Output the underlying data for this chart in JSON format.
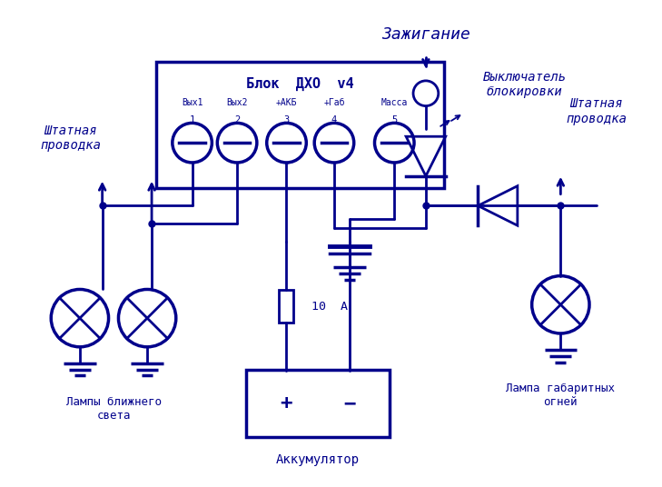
{
  "color": "#00008B",
  "bg_color": "#FFFFFF",
  "block_title": "Блок  ДХО  v4",
  "conn_labels": [
    "Вых1",
    "Вых2",
    "+АКБ",
    "+Габ",
    "Масса"
  ],
  "conn_nums": [
    "1",
    "2",
    "3",
    "4",
    "5"
  ],
  "ignition_label": "Зажигание",
  "switch_label": "Выключатель\nблокировки",
  "wiring_left": "Штатная\nпроводка",
  "wiring_right": "Штатная\nпроводка",
  "lamp_left_label": "Лампы ближнего\nсвета",
  "lamp_right_label": "Лампа габаритных\nогней",
  "battery_label": "Аккумулятор",
  "fuse_label": "10  А"
}
